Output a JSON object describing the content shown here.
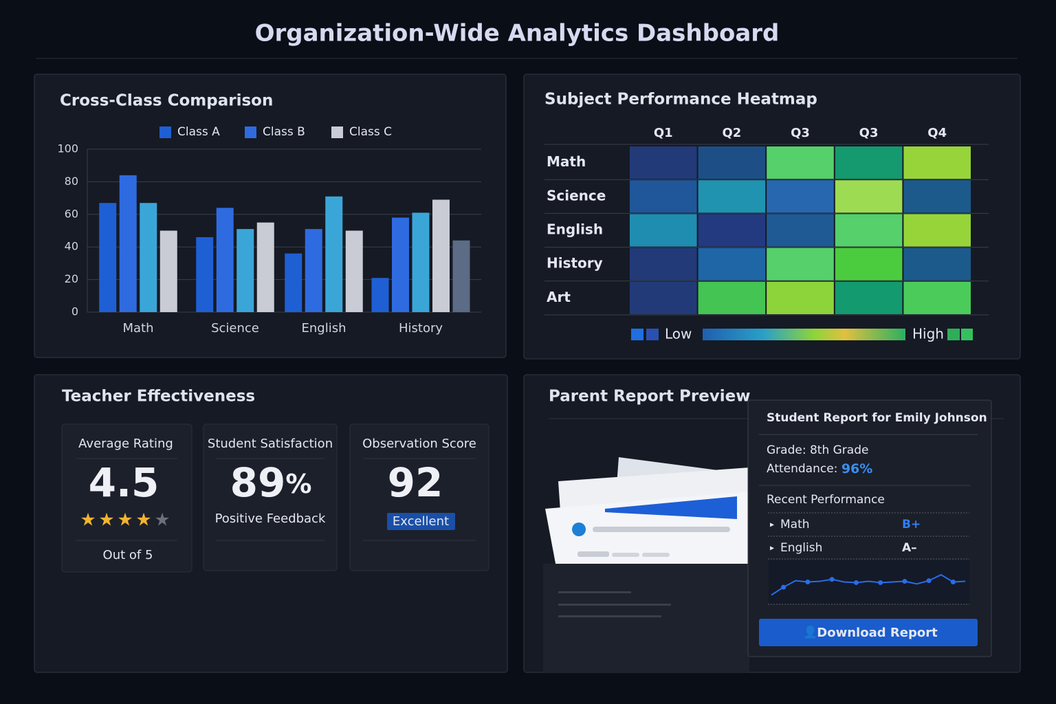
{
  "title": "Organization-Wide Analytics Dashboard",
  "chart_data": [
    {
      "type": "bar",
      "title": "Cross-Class Comparison",
      "categories": [
        "Math",
        "Science",
        "English",
        "History"
      ],
      "series": [
        {
          "name": "Class A",
          "color": "#1f5fd4",
          "values": [
            67,
            46,
            36,
            21
          ]
        },
        {
          "name": "Class B",
          "color": "#2f6be0",
          "values": [
            84,
            64,
            51,
            58
          ]
        },
        {
          "name": null,
          "color": "#3aa6d8",
          "values": [
            67,
            51,
            71,
            61
          ]
        },
        {
          "name": "Class C",
          "color": "#c9ccd4",
          "values": [
            50,
            55,
            50,
            69
          ]
        },
        {
          "name": null,
          "color": "#5c6b86",
          "values": [
            null,
            null,
            null,
            44
          ]
        }
      ],
      "ylim": [
        0,
        100
      ],
      "yticks": [
        0,
        20,
        40,
        60,
        80,
        100
      ],
      "grid": true
    },
    {
      "type": "heatmap",
      "title": "Subject Performance Heatmap",
      "x": [
        "Q1",
        "Q2",
        "Q3",
        "Q3",
        "Q4"
      ],
      "y": [
        "Math",
        "Science",
        "English",
        "History",
        "Art"
      ],
      "colors": [
        [
          "#223a78",
          "#1d4f86",
          "#55d06a",
          "#149a6e",
          "#97d43a"
        ],
        [
          "#1f579a",
          "#1f93b0",
          "#2667b0",
          "#9ddc52",
          "#1c5a8c"
        ],
        [
          "#1f8db0",
          "#233a80",
          "#1f5a94",
          "#55d06a",
          "#97d43a"
        ],
        [
          "#223a78",
          "#1e66a6",
          "#55d06a",
          "#4bcc3e",
          "#1c5a8c"
        ],
        [
          "#223a78",
          "#44c452",
          "#8dd43a",
          "#139a6e",
          "#4bcc5a"
        ]
      ],
      "legend_low": "Low",
      "legend_high": "High"
    }
  ],
  "teacher_effectiveness": {
    "title": "Teacher Effectiveness",
    "cards": [
      {
        "label": "Average Rating",
        "value": "4.5",
        "note": "Out of 5"
      },
      {
        "label": "Student Satisfaction",
        "value": "89",
        "unit": "%",
        "note": "Positive Feedback"
      },
      {
        "label": "Observation Score",
        "value": "92",
        "badge": "Excellent"
      }
    ]
  },
  "parent_report": {
    "title": "Parent Report Preview",
    "card_title": "Student Report for Emily Johnson",
    "grade": "Grade: 8th Grade",
    "attendance_label": "Attendance:",
    "attendance": "96%",
    "section": "Recent Performance",
    "rows": [
      {
        "subject": "Math",
        "grade": "B+"
      },
      {
        "subject": "English",
        "grade": "A–"
      }
    ],
    "trend": {
      "values": [
        10,
        22,
        32,
        30,
        31,
        34,
        30,
        29,
        31,
        29,
        30,
        31,
        27,
        32,
        41,
        30,
        31
      ],
      "ylim": [
        0,
        60
      ]
    },
    "button": "Download Report"
  }
}
